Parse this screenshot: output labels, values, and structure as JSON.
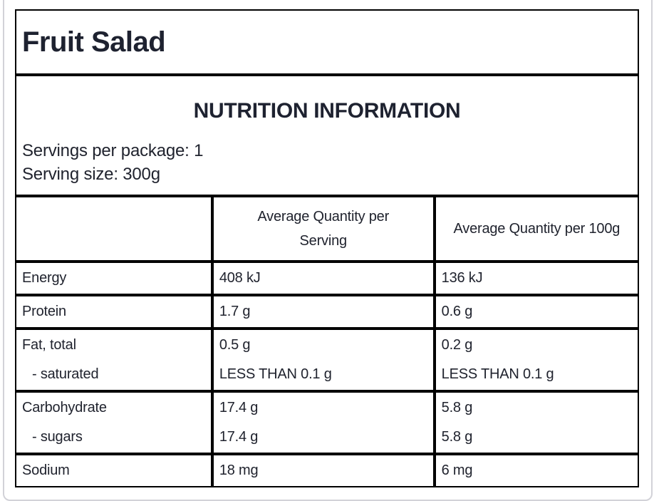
{
  "product": {
    "title": "Fruit Salad"
  },
  "panel": {
    "heading": "NUTRITION INFORMATION",
    "servings_per_package": "Servings per package: 1",
    "serving_size": "Serving size: 300g"
  },
  "table": {
    "col_serving": "Average Quantity per Serving",
    "col_per100": "Average Quantity per 100g",
    "rows": [
      {
        "label": "Energy",
        "serving": "408 kJ",
        "per100": "136 kJ"
      },
      {
        "label": "Protein",
        "serving": "1.7 g",
        "per100": "0.6 g"
      },
      {
        "label": "Fat, total",
        "serving": "0.5 g",
        "per100": "0.2 g",
        "sub_label": "- saturated",
        "sub_serving": "LESS THAN 0.1 g",
        "sub_per100": "LESS THAN 0.1 g"
      },
      {
        "label": "Carbohydrate",
        "serving": "17.4 g",
        "per100": "5.8 g",
        "sub_label": "- sugars",
        "sub_serving": "17.4 g",
        "sub_per100": "5.8 g"
      },
      {
        "label": "Sodium",
        "serving": "18 mg",
        "per100": "6 mg"
      }
    ]
  },
  "colors": {
    "text": "#1e2230",
    "table_border": "#000000",
    "page_frame_border": "#d2d2d8",
    "background": "#ffffff"
  }
}
